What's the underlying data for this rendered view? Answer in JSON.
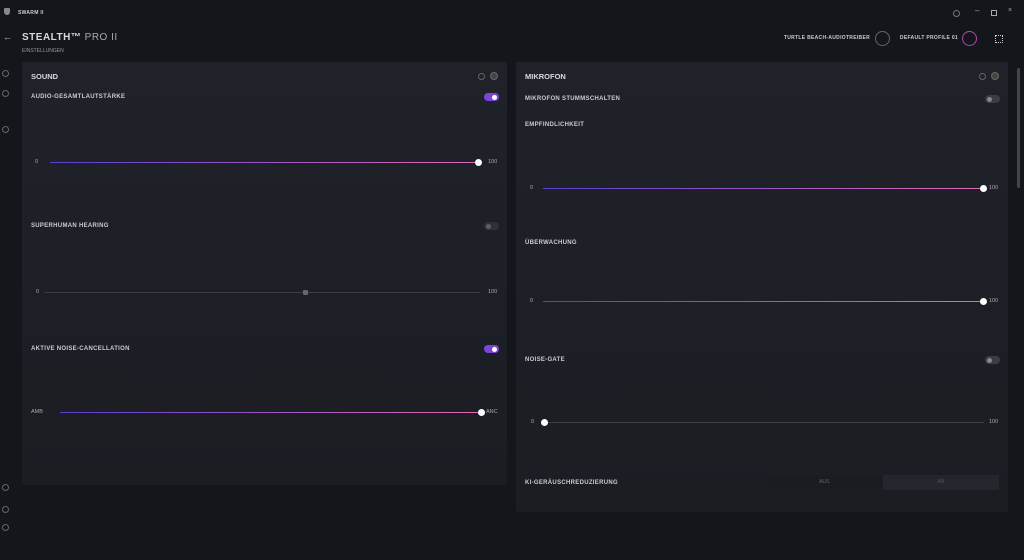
{
  "app": {
    "name": "SWARM II"
  },
  "header": {
    "device": "STEALTH™",
    "model": "PRO II",
    "subtitle": "EINSTELLUNGEN",
    "driver": "TURTLE BEACH-AUDIOTREIBER",
    "profile": "DEFAULT PROFILE 01"
  },
  "sound": {
    "title": "SOUND",
    "volume": {
      "label": "AUDIO-GESAMTLAUTSTÄRKE",
      "on": true,
      "slider": {
        "min": 0,
        "max": 100,
        "value": 100
      }
    },
    "superhuman": {
      "label": "SUPERHUMAN HEARING",
      "on": false,
      "slider": {
        "min": 0,
        "max": 100,
        "value": 60
      }
    },
    "anc": {
      "label": "AKTIVE NOISE-CANCELLATION",
      "on": true,
      "slider": {
        "min": 0,
        "max": 100,
        "value": 100,
        "min_label": "AMB",
        "max_label": "ANC"
      }
    }
  },
  "mic": {
    "title": "MIKROFON",
    "mute": {
      "label": "MIKROFON STUMMSCHALTEN",
      "on": false
    },
    "sensitivity": {
      "label": "EMPFINDLICHKEIT",
      "slider": {
        "min": 0,
        "max": 100,
        "value": 100
      }
    },
    "monitoring": {
      "label": "ÜBERWACHUNG",
      "slider": {
        "min": 0,
        "max": 100,
        "value": 100
      }
    },
    "noise_gate": {
      "label": "NOISE-GATE",
      "on": false,
      "slider": {
        "min": 0,
        "max": 100,
        "value": 0
      }
    },
    "ai_noise": {
      "label": "KI-GERÄUSCHREDUZIERUNG",
      "options": [
        "AUS",
        "AN"
      ]
    }
  }
}
